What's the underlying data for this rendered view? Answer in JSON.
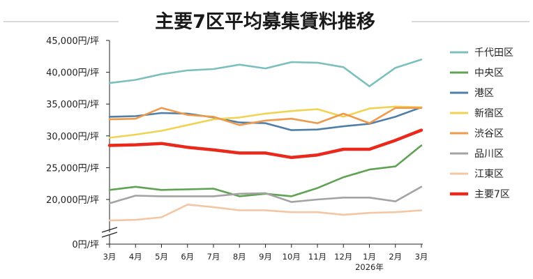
{
  "chart_data": {
    "type": "line",
    "title": "主要7区平均募集賃料推移",
    "xlabel": "",
    "ylabel": "",
    "categories": [
      "3月",
      "4月",
      "5月",
      "6月",
      "7月",
      "8月",
      "9月",
      "10月",
      "11月",
      "12月",
      "1月",
      "2月",
      "3月"
    ],
    "year_label": "2026年",
    "year_label_under": "1月",
    "y_ticks": [
      {
        "value": 45000,
        "label": "45,000円/坪"
      },
      {
        "value": 40000,
        "label": "40,000円/坪"
      },
      {
        "value": 35000,
        "label": "35,000円/坪"
      },
      {
        "value": 30000,
        "label": "30,000円/坪"
      },
      {
        "value": 25000,
        "label": "25,000円/坪"
      },
      {
        "value": 20000,
        "label": "20,000円/坪"
      },
      {
        "value": 0,
        "label": "0円/坪"
      }
    ],
    "ylim": [
      15000,
      45000
    ],
    "axis_break": true,
    "grid": false,
    "legend_position": "right",
    "series": [
      {
        "name": "千代田区",
        "color": "#7cc0bd",
        "emphasis": false,
        "values": [
          38300,
          38800,
          39700,
          40300,
          40500,
          41200,
          40600,
          41600,
          41500,
          40800,
          37800,
          40700,
          42000
        ]
      },
      {
        "name": "中央区",
        "color": "#5fa352",
        "emphasis": false,
        "values": [
          21500,
          22000,
          21500,
          21600,
          21700,
          20500,
          20900,
          20500,
          21800,
          23500,
          24700,
          25200,
          28500
        ]
      },
      {
        "name": "港区",
        "color": "#4f7fa8",
        "emphasis": false,
        "values": [
          33000,
          33100,
          33600,
          33500,
          32900,
          32100,
          32000,
          30900,
          31000,
          31500,
          31900,
          33000,
          34500
        ]
      },
      {
        "name": "新宿区",
        "color": "#f0d352",
        "emphasis": false,
        "values": [
          29700,
          30200,
          30800,
          31700,
          32600,
          32900,
          33500,
          33900,
          34200,
          33000,
          34300,
          34600,
          34500
        ]
      },
      {
        "name": "渋谷区",
        "color": "#ef9a4a",
        "emphasis": false,
        "values": [
          32600,
          32700,
          34400,
          33300,
          33000,
          31700,
          32400,
          32700,
          32000,
          33500,
          32000,
          34400,
          34400
        ]
      },
      {
        "name": "品川区",
        "color": "#a3a3a3",
        "emphasis": false,
        "values": [
          19400,
          20600,
          20500,
          20500,
          20500,
          20900,
          21000,
          19600,
          20000,
          20300,
          20300,
          19700,
          22000
        ]
      },
      {
        "name": "江東区",
        "color": "#f3c6a4",
        "emphasis": false,
        "values": [
          16700,
          16800,
          17200,
          19200,
          18800,
          18300,
          18300,
          18000,
          18000,
          17600,
          17900,
          18000,
          18300
        ]
      },
      {
        "name": "主要7区",
        "color": "#e8291c",
        "emphasis": true,
        "values": [
          28500,
          28600,
          28800,
          28200,
          27800,
          27300,
          27300,
          26600,
          27000,
          27900,
          27900,
          29300,
          30900
        ]
      }
    ]
  }
}
